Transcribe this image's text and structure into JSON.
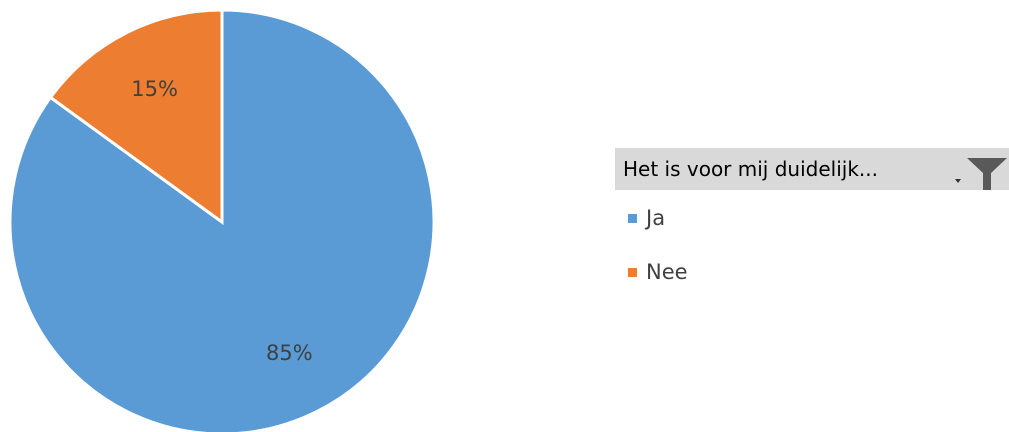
{
  "chart_data": {
    "type": "pie",
    "categories": [
      "Ja",
      "Nee"
    ],
    "values": [
      85,
      15
    ],
    "labels": [
      "85%",
      "15%"
    ],
    "colors": [
      "#5b9bd5",
      "#ed7d31"
    ],
    "legend_title": "Het is voor mij duidelijk...",
    "legend_position": "right"
  },
  "filter": {
    "icon": "funnel-filter-icon"
  }
}
